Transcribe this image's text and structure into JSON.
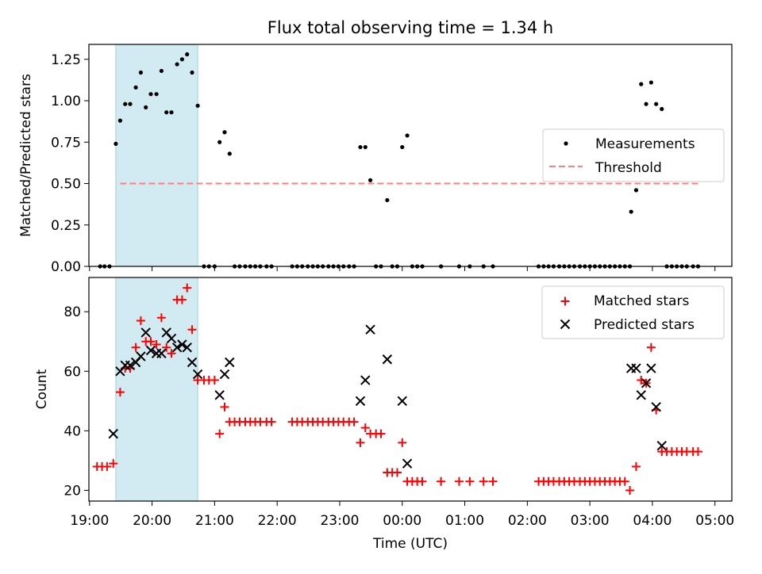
{
  "figure": {
    "title": "Flux total observing time = 1.34 h"
  },
  "colors": {
    "shade": "#add8e6",
    "threshold": "#ff7f7f",
    "matched": "#ff0000",
    "predicted": "#000000",
    "measurement": "#000000"
  },
  "chart_data": [
    {
      "type": "scatter",
      "title": "Flux total observing time = 1.34 h",
      "xlabel": "",
      "ylabel": "Matched/Predicted stars",
      "xlim": [
        18.99,
        29.27
      ],
      "ylim": [
        0,
        1.34
      ],
      "yticks": [
        0,
        0.25,
        0.5,
        0.75,
        1.0,
        1.25
      ],
      "ytick_labels": [
        "0.00",
        "0.25",
        "0.50",
        "0.75",
        "1.00",
        "1.25"
      ],
      "shaded_span": [
        19.42,
        20.73
      ],
      "threshold": {
        "label": "Threshold",
        "y": 0.5,
        "x_range": [
          19.49,
          28.73
        ]
      },
      "legend": {
        "position": "center-right",
        "entries": [
          "Measurements",
          "Threshold"
        ]
      },
      "series": [
        {
          "name": "Measurements",
          "points": [
            [
              19.17,
              0
            ],
            [
              19.24,
              0
            ],
            [
              19.32,
              0
            ],
            [
              19.42,
              0.74
            ],
            [
              19.49,
              0.88
            ],
            [
              19.57,
              0.98
            ],
            [
              19.65,
              0.98
            ],
            [
              19.74,
              1.08
            ],
            [
              19.82,
              1.17
            ],
            [
              19.9,
              0.96
            ],
            [
              19.98,
              1.04
            ],
            [
              20.07,
              1.04
            ],
            [
              20.15,
              1.18
            ],
            [
              20.23,
              0.93
            ],
            [
              20.31,
              0.93
            ],
            [
              20.4,
              1.22
            ],
            [
              20.48,
              1.25
            ],
            [
              20.56,
              1.28
            ],
            [
              20.64,
              1.17
            ],
            [
              20.73,
              0.97
            ],
            [
              20.83,
              0
            ],
            [
              20.91,
              0
            ],
            [
              21.0,
              0
            ],
            [
              21.08,
              0.75
            ],
            [
              21.16,
              0.81
            ],
            [
              21.24,
              0.68
            ],
            [
              21.32,
              0
            ],
            [
              21.4,
              0
            ],
            [
              21.49,
              0
            ],
            [
              21.57,
              0
            ],
            [
              21.65,
              0
            ],
            [
              21.73,
              0
            ],
            [
              21.83,
              0
            ],
            [
              21.91,
              0
            ],
            [
              22.24,
              0
            ],
            [
              22.32,
              0
            ],
            [
              22.4,
              0
            ],
            [
              22.49,
              0
            ],
            [
              22.57,
              0
            ],
            [
              22.65,
              0
            ],
            [
              22.73,
              0
            ],
            [
              22.82,
              0
            ],
            [
              22.9,
              0
            ],
            [
              22.98,
              0
            ],
            [
              23.06,
              0
            ],
            [
              23.15,
              0
            ],
            [
              23.23,
              0
            ],
            [
              23.33,
              0.72
            ],
            [
              23.41,
              0.72
            ],
            [
              23.49,
              0.52
            ],
            [
              23.58,
              0
            ],
            [
              23.66,
              0
            ],
            [
              23.76,
              0.4
            ],
            [
              23.84,
              0
            ],
            [
              23.92,
              0
            ],
            [
              24.0,
              0.72
            ],
            [
              24.08,
              0.79
            ],
            [
              24.16,
              0
            ],
            [
              24.24,
              0
            ],
            [
              24.32,
              0
            ],
            [
              24.62,
              0
            ],
            [
              24.91,
              0
            ],
            [
              25.08,
              0
            ],
            [
              25.3,
              0
            ],
            [
              25.45,
              0
            ],
            [
              26.18,
              0
            ],
            [
              26.26,
              0
            ],
            [
              26.34,
              0
            ],
            [
              26.42,
              0
            ],
            [
              26.51,
              0
            ],
            [
              26.59,
              0
            ],
            [
              26.67,
              0
            ],
            [
              26.75,
              0
            ],
            [
              26.84,
              0
            ],
            [
              26.92,
              0
            ],
            [
              27.0,
              0
            ],
            [
              27.08,
              0
            ],
            [
              27.16,
              0
            ],
            [
              27.24,
              0
            ],
            [
              27.32,
              0
            ],
            [
              27.4,
              0
            ],
            [
              27.48,
              0
            ],
            [
              27.56,
              0
            ],
            [
              27.64,
              0
            ],
            [
              27.66,
              0.33
            ],
            [
              27.74,
              0.46
            ],
            [
              27.82,
              1.1
            ],
            [
              27.9,
              0.98
            ],
            [
              27.98,
              1.11
            ],
            [
              28.06,
              0.98
            ],
            [
              28.15,
              0.95
            ],
            [
              28.23,
              0
            ],
            [
              28.31,
              0
            ],
            [
              28.39,
              0
            ],
            [
              28.47,
              0
            ],
            [
              28.55,
              0
            ],
            [
              28.65,
              0
            ],
            [
              28.73,
              0
            ]
          ]
        }
      ]
    },
    {
      "type": "scatter",
      "title": "",
      "xlabel": "Time (UTC)",
      "ylabel": "Count",
      "xlim": [
        18.99,
        29.27
      ],
      "ylim": [
        16.4,
        91.5
      ],
      "yticks": [
        20,
        40,
        60,
        80
      ],
      "ytick_labels": [
        "20",
        "40",
        "60",
        "80"
      ],
      "xticks": [
        19,
        20,
        21,
        22,
        23,
        24,
        25,
        26,
        27,
        28,
        29
      ],
      "xtick_labels": [
        "19:00",
        "20:00",
        "21:00",
        "22:00",
        "23:00",
        "00:00",
        "01:00",
        "02:00",
        "03:00",
        "04:00",
        "05:00"
      ],
      "shaded_span": [
        19.42,
        20.73
      ],
      "legend": {
        "position": "top-right",
        "entries": [
          "Matched stars",
          "Predicted stars"
        ]
      },
      "series": [
        {
          "name": "Matched stars",
          "marker": "plus",
          "points": [
            [
              19.12,
              28
            ],
            [
              19.2,
              28
            ],
            [
              19.28,
              28
            ],
            [
              19.38,
              29
            ],
            [
              19.49,
              53
            ],
            [
              19.57,
              61
            ],
            [
              19.65,
              61
            ],
            [
              19.74,
              68
            ],
            [
              19.82,
              77
            ],
            [
              19.9,
              70
            ],
            [
              19.98,
              70
            ],
            [
              20.07,
              69
            ],
            [
              20.15,
              78
            ],
            [
              20.23,
              68
            ],
            [
              20.31,
              66
            ],
            [
              20.4,
              84
            ],
            [
              20.48,
              84
            ],
            [
              20.56,
              88
            ],
            [
              20.64,
              74
            ],
            [
              20.73,
              57
            ],
            [
              20.83,
              57
            ],
            [
              20.91,
              57
            ],
            [
              21.0,
              57
            ],
            [
              21.08,
              39
            ],
            [
              21.16,
              48
            ],
            [
              21.24,
              43
            ],
            [
              21.32,
              43
            ],
            [
              21.4,
              43
            ],
            [
              21.49,
              43
            ],
            [
              21.57,
              43
            ],
            [
              21.65,
              43
            ],
            [
              21.73,
              43
            ],
            [
              21.83,
              43
            ],
            [
              21.91,
              43
            ],
            [
              22.24,
              43
            ],
            [
              22.32,
              43
            ],
            [
              22.4,
              43
            ],
            [
              22.49,
              43
            ],
            [
              22.57,
              43
            ],
            [
              22.65,
              43
            ],
            [
              22.73,
              43
            ],
            [
              22.82,
              43
            ],
            [
              22.9,
              43
            ],
            [
              22.98,
              43
            ],
            [
              23.06,
              43
            ],
            [
              23.15,
              43
            ],
            [
              23.23,
              43
            ],
            [
              23.33,
              36
            ],
            [
              23.41,
              41
            ],
            [
              23.49,
              39
            ],
            [
              23.58,
              39
            ],
            [
              23.66,
              39
            ],
            [
              23.76,
              26
            ],
            [
              23.84,
              26
            ],
            [
              23.92,
              26
            ],
            [
              24.0,
              36
            ],
            [
              24.08,
              23
            ],
            [
              24.16,
              23
            ],
            [
              24.24,
              23
            ],
            [
              24.32,
              23
            ],
            [
              24.62,
              23
            ],
            [
              24.91,
              23
            ],
            [
              25.08,
              23
            ],
            [
              25.3,
              23
            ],
            [
              25.45,
              23
            ],
            [
              26.18,
              23
            ],
            [
              26.26,
              23
            ],
            [
              26.34,
              23
            ],
            [
              26.42,
              23
            ],
            [
              26.51,
              23
            ],
            [
              26.59,
              23
            ],
            [
              26.67,
              23
            ],
            [
              26.75,
              23
            ],
            [
              26.84,
              23
            ],
            [
              26.92,
              23
            ],
            [
              27.0,
              23
            ],
            [
              27.08,
              23
            ],
            [
              27.16,
              23
            ],
            [
              27.24,
              23
            ],
            [
              27.32,
              23
            ],
            [
              27.4,
              23
            ],
            [
              27.48,
              23
            ],
            [
              27.56,
              23
            ],
            [
              27.64,
              20
            ],
            [
              27.74,
              28
            ],
            [
              27.82,
              57
            ],
            [
              27.9,
              56
            ],
            [
              27.98,
              68
            ],
            [
              28.06,
              47
            ],
            [
              28.15,
              33
            ],
            [
              28.23,
              33
            ],
            [
              28.31,
              33
            ],
            [
              28.39,
              33
            ],
            [
              28.47,
              33
            ],
            [
              28.55,
              33
            ],
            [
              28.65,
              33
            ],
            [
              28.73,
              33
            ]
          ]
        },
        {
          "name": "Predicted stars",
          "marker": "x",
          "points": [
            [
              19.38,
              39
            ],
            [
              19.49,
              60
            ],
            [
              19.57,
              62
            ],
            [
              19.65,
              62
            ],
            [
              19.74,
              63
            ],
            [
              19.82,
              65
            ],
            [
              19.9,
              73
            ],
            [
              19.98,
              67
            ],
            [
              20.07,
              66
            ],
            [
              20.15,
              66
            ],
            [
              20.23,
              73
            ],
            [
              20.31,
              71
            ],
            [
              20.4,
              68
            ],
            [
              20.48,
              69
            ],
            [
              20.56,
              68
            ],
            [
              20.64,
              63
            ],
            [
              20.73,
              59
            ],
            [
              21.08,
              52
            ],
            [
              21.16,
              59
            ],
            [
              21.24,
              63
            ],
            [
              23.33,
              50
            ],
            [
              23.41,
              57
            ],
            [
              23.49,
              74
            ],
            [
              23.76,
              64
            ],
            [
              24.0,
              50
            ],
            [
              24.08,
              29
            ],
            [
              27.66,
              61
            ],
            [
              27.74,
              61
            ],
            [
              27.82,
              52
            ],
            [
              27.9,
              56
            ],
            [
              27.98,
              61
            ],
            [
              28.06,
              48
            ],
            [
              28.15,
              35
            ]
          ]
        }
      ]
    }
  ]
}
